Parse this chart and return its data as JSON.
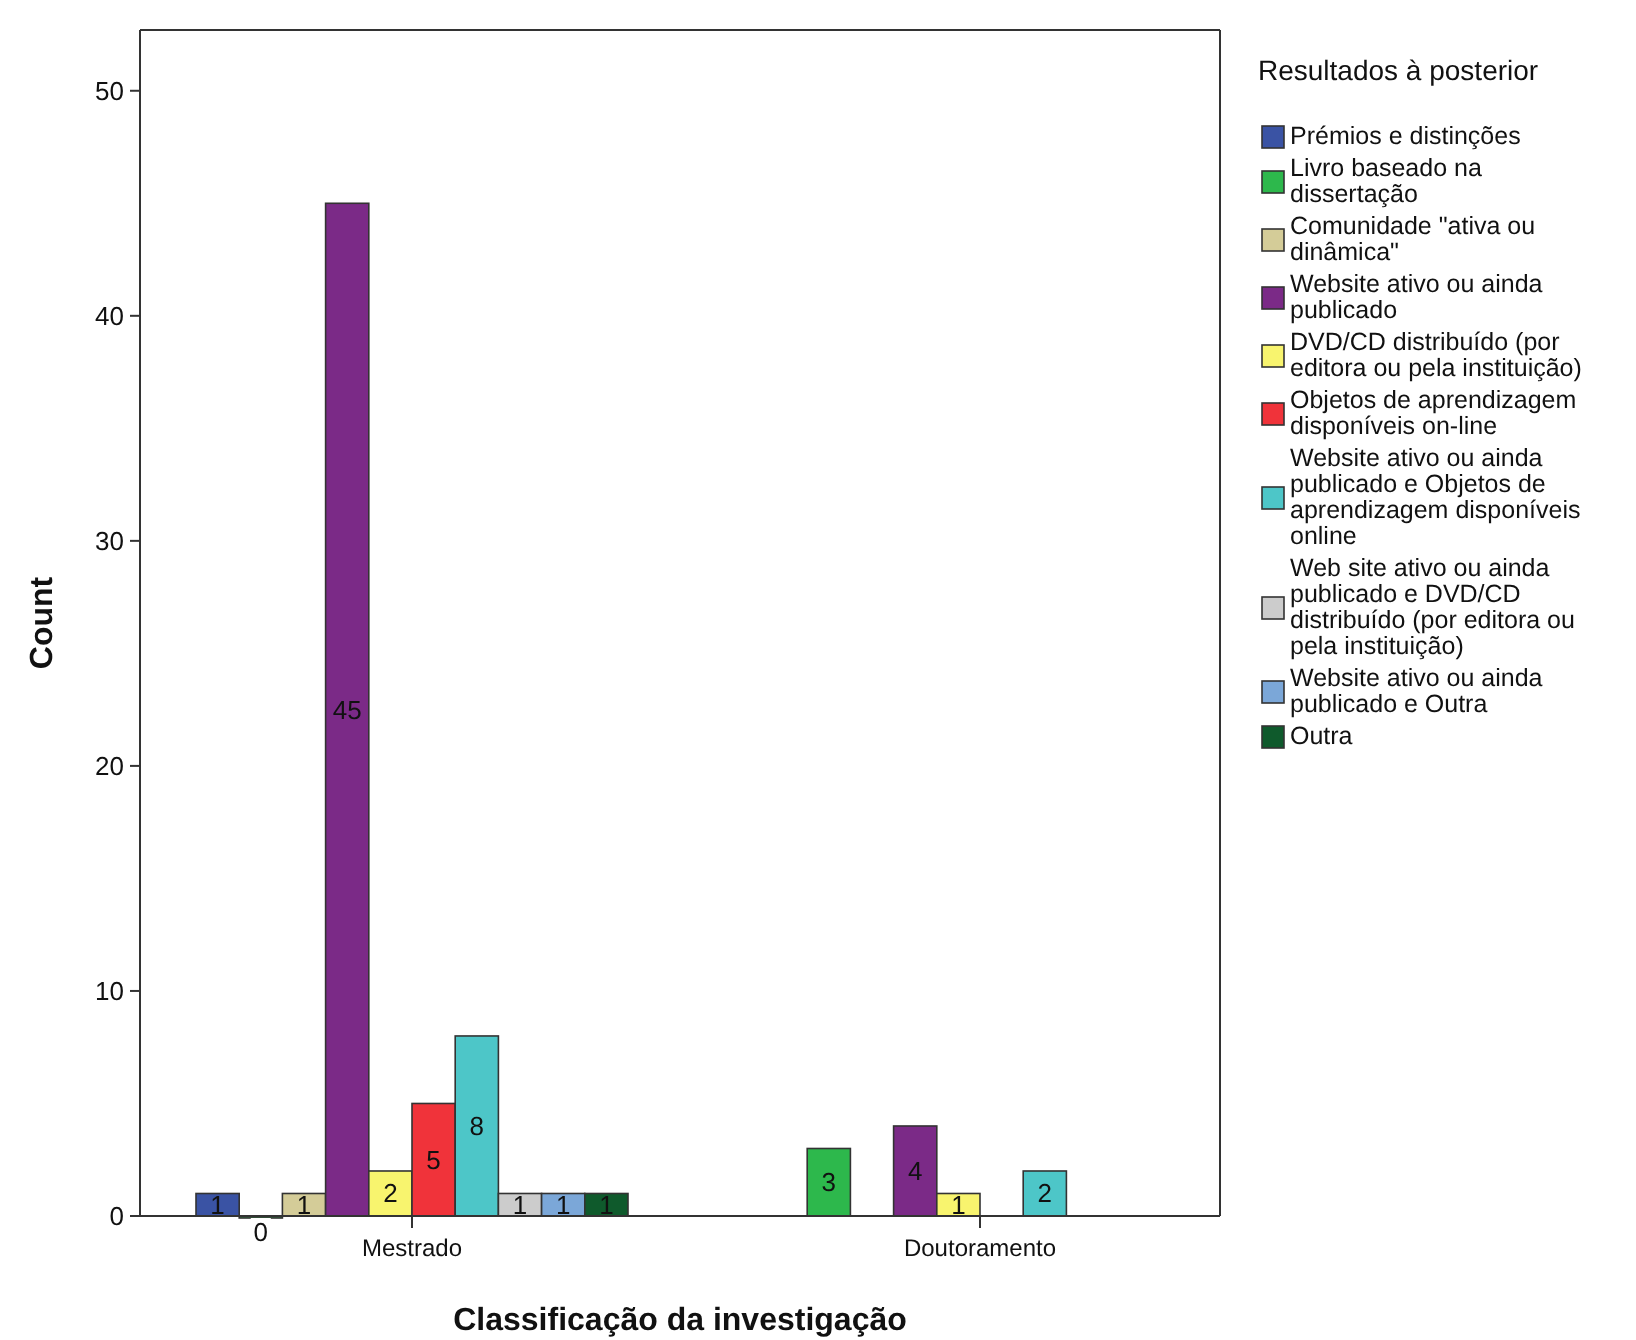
{
  "chart_data": {
    "type": "bar",
    "xlabel": "Classificação da investigação",
    "ylabel": "Count",
    "legend_title": "Resultados à posterior",
    "categories": [
      "Mestrado",
      "Doutoramento"
    ],
    "ylim": [
      0,
      52.7
    ],
    "yticks": [
      0,
      10,
      20,
      30,
      40,
      50
    ],
    "grid": false,
    "legend": "right",
    "data_labels": true,
    "series": [
      {
        "name": "Prémios e distinções",
        "color": "#3a53a4",
        "values": [
          1,
          null
        ]
      },
      {
        "name": "Livro baseado na dissertação",
        "color": "#2db84c",
        "values": [
          0,
          3
        ]
      },
      {
        "name": "Comunidade \"ativa ou dinâmica\"",
        "color": "#d4cc98",
        "values": [
          1,
          null
        ]
      },
      {
        "name": "Website ativo ou ainda publicado",
        "color": "#7b2a87",
        "values": [
          45,
          4
        ]
      },
      {
        "name": "DVD/CD distribuído (por editora ou pela instituição)",
        "color": "#f8f46e",
        "values": [
          2,
          1
        ]
      },
      {
        "name": "Objetos de aprendizagem disponíveis on-line",
        "color": "#f0333a",
        "values": [
          5,
          null
        ]
      },
      {
        "name": "Website ativo ou ainda publicado e Objetos de aprendizagem disponíveis online",
        "color": "#4dc6c8",
        "values": [
          8,
          2
        ]
      },
      {
        "name": "Web site ativo ou ainda publicado e DVD/CD distribuído (por editora ou pela instituição)",
        "color": "#cccccc",
        "values": [
          1,
          null
        ]
      },
      {
        "name": "Website ativo ou ainda publicado e Outra",
        "color": "#7ba7d8",
        "values": [
          1,
          null
        ]
      },
      {
        "name": "Outra",
        "color": "#0f5a2c",
        "values": [
          1,
          null
        ]
      }
    ]
  }
}
